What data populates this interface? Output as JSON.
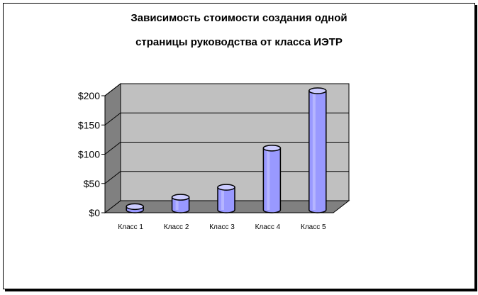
{
  "chart_data": {
    "type": "bar",
    "title_line1": "Зависимость стоимости создания одной",
    "title_line2": "страницы руководства от класса ИЭТР",
    "categories": [
      "Класс 1",
      "Класс 2",
      "Класс 3",
      "Класс 4",
      "Класс 5"
    ],
    "values": [
      2,
      18,
      35,
      102,
      200
    ],
    "y_ticks": [
      "$0",
      "$50",
      "$100",
      "$150",
      "$200"
    ],
    "ylim": [
      0,
      200
    ],
    "grid": true,
    "colors": {
      "bar_front": "#9999ff",
      "bar_top": "#ccccff",
      "wall": "#c0c0c0",
      "floor": "#808080"
    }
  }
}
